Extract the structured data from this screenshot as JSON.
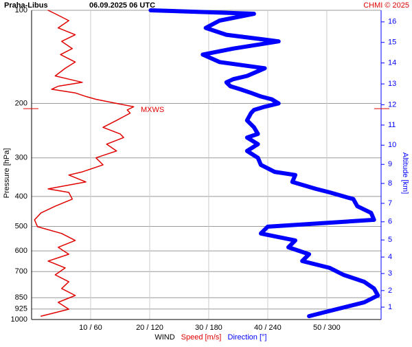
{
  "chart_data": {
    "type": "line",
    "title": "Praha-Libus",
    "subtitle": "06.09.2025 06 UTC",
    "credit": "CHMI © 2025",
    "y_label": "Pressure [hPa]",
    "y2_label": "Altitude [km]",
    "legend_title": "WIND",
    "log_y": true,
    "grid": true,
    "ylim": [
      100,
      1000
    ],
    "yticks": [
      100,
      200,
      300,
      400,
      500,
      600,
      700,
      850,
      925,
      1000
    ],
    "xlim": [
      0,
      59.2
    ],
    "x2lim": [
      0,
      355.2
    ],
    "xticks": [
      {
        "value": 10,
        "label": "10 / 60"
      },
      {
        "value": 20,
        "label": "20 / 120"
      },
      {
        "value": 30,
        "label": "30 / 180"
      },
      {
        "value": 40,
        "label": "40 / 240"
      },
      {
        "value": 50,
        "label": "50 / 300"
      }
    ],
    "altitude_ticks": [
      1,
      2,
      3,
      4,
      5,
      6,
      7,
      8,
      9,
      10,
      11,
      12,
      13,
      14,
      15,
      16
    ],
    "altitude_pressure": [
      912,
      806,
      710,
      628,
      553,
      483,
      421,
      363,
      315,
      273,
      235,
      202,
      173,
      148,
      127,
      109
    ],
    "mxws": {
      "label": "MXWS",
      "pressure": 208
    },
    "pressure": [
      100,
      102.6,
      108,
      114,
      120,
      126,
      133,
      139,
      147,
      154,
      163,
      167,
      171,
      176,
      180,
      185,
      190,
      194,
      200,
      205,
      210,
      215,
      227,
      239,
      251,
      258,
      271,
      285,
      300,
      316,
      333,
      341,
      359,
      378,
      388,
      408,
      430,
      452,
      476,
      501,
      527,
      555,
      584,
      615,
      647,
      681,
      717,
      755,
      794,
      836,
      880,
      926,
      950,
      975
    ],
    "series": [
      {
        "name": "Speed [m/s]",
        "color": "#e00000",
        "axis": "x",
        "values": [
          2.8,
          4.0,
          6.3,
          4.5,
          7.4,
          5.1,
          6.9,
          4.9,
          7.4,
          5.7,
          4.0,
          6.3,
          8.6,
          4.5,
          3.4,
          7.4,
          9.2,
          10.9,
          14.4,
          17.3,
          16.2,
          16.7,
          14.4,
          12.1,
          15.0,
          15.6,
          12.7,
          14.4,
          10.9,
          12.1,
          8.6,
          6.3,
          9.2,
          2.8,
          6.3,
          6.9,
          4.0,
          1.6,
          0.5,
          1.0,
          5.1,
          7.4,
          4.5,
          6.3,
          2.8,
          5.7,
          4.0,
          6.3,
          5.1,
          7.4,
          4.5,
          6.3,
          4.0,
          1.6
        ]
      },
      {
        "name": "Direction [°]",
        "color": "#0000ff",
        "axis": "x2",
        "values": [
          121,
          226,
          191,
          177,
          198,
          251,
          205,
          174,
          191,
          237,
          219,
          205,
          198,
          202,
          212,
          223,
          233,
          244,
          251,
          237,
          226,
          223,
          219,
          226,
          230,
          219,
          230,
          219,
          230,
          233,
          247,
          268,
          265,
          289,
          303,
          327,
          331,
          345,
          348,
          240,
          233,
          268,
          261,
          282,
          275,
          303,
          317,
          338,
          348,
          352,
          338,
          310,
          296,
          282
        ]
      }
    ]
  }
}
